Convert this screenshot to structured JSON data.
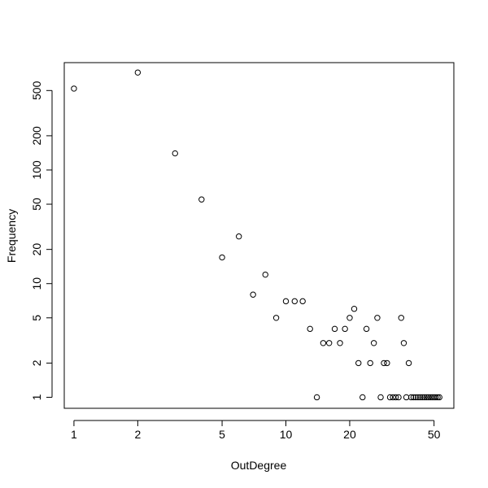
{
  "chart_data": {
    "type": "scatter",
    "xlabel": "OutDegree",
    "ylabel": "Frequency",
    "x_scale": "log",
    "y_scale": "log",
    "xlim": [
      0.9,
      62
    ],
    "ylim": [
      0.8,
      880
    ],
    "x_ticks": [
      1,
      2,
      5,
      10,
      20,
      50
    ],
    "y_ticks": [
      1,
      2,
      5,
      10,
      20,
      50,
      100,
      200,
      500
    ],
    "x_tick_labels": [
      "1",
      "2",
      "5",
      "10",
      "20",
      "50"
    ],
    "y_tick_labels": [
      "1",
      "2",
      "5",
      "10",
      "20",
      "50",
      "100",
      "200",
      "500"
    ],
    "grid": false,
    "marker": "open-circle",
    "points": [
      [
        1,
        520
      ],
      [
        2,
        720
      ],
      [
        3,
        140
      ],
      [
        4,
        55
      ],
      [
        5,
        17
      ],
      [
        6,
        26
      ],
      [
        7,
        8
      ],
      [
        8,
        12
      ],
      [
        9,
        5
      ],
      [
        10,
        7
      ],
      [
        11,
        7
      ],
      [
        12,
        7
      ],
      [
        13,
        4
      ],
      [
        14,
        1
      ],
      [
        15,
        3
      ],
      [
        16,
        3
      ],
      [
        17,
        4
      ],
      [
        18,
        3
      ],
      [
        19,
        4
      ],
      [
        20,
        5
      ],
      [
        21,
        6
      ],
      [
        22,
        2
      ],
      [
        23,
        1
      ],
      [
        24,
        4
      ],
      [
        25,
        2
      ],
      [
        26,
        3
      ],
      [
        27,
        5
      ],
      [
        28,
        1
      ],
      [
        29,
        2
      ],
      [
        30,
        2
      ],
      [
        31,
        1
      ],
      [
        32,
        1
      ],
      [
        33,
        1
      ],
      [
        34,
        1
      ],
      [
        35,
        5
      ],
      [
        36,
        3
      ],
      [
        37,
        1
      ],
      [
        38,
        2
      ],
      [
        39,
        1
      ],
      [
        40,
        1
      ],
      [
        41,
        1
      ],
      [
        42,
        1
      ],
      [
        43,
        1
      ],
      [
        44,
        1
      ],
      [
        45,
        1
      ],
      [
        46,
        1
      ],
      [
        47,
        1
      ],
      [
        48,
        1
      ],
      [
        49,
        1
      ],
      [
        50,
        1
      ],
      [
        51,
        1
      ],
      [
        52,
        1
      ],
      [
        53,
        1
      ]
    ]
  }
}
